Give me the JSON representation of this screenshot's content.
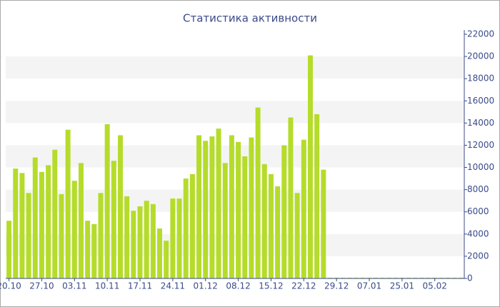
{
  "chart_data": {
    "type": "bar",
    "title": "Статистика активности",
    "categories": [
      "20.10",
      null,
      null,
      null,
      null,
      "27.10",
      null,
      null,
      null,
      null,
      "03.11",
      null,
      null,
      null,
      null,
      "10.11",
      null,
      null,
      null,
      null,
      "17.11",
      null,
      null,
      null,
      null,
      "24.11",
      null,
      null,
      null,
      null,
      "01.12",
      null,
      null,
      null,
      null,
      "08.12",
      null,
      null,
      null,
      null,
      "15.12",
      null,
      null,
      null,
      null,
      "22.12",
      null,
      null,
      null,
      null,
      "29.12",
      null,
      null,
      null,
      null,
      "07.01",
      null,
      null,
      null,
      null,
      "25.01",
      null,
      null,
      null,
      null,
      "05.02",
      null,
      null,
      null,
      null
    ],
    "values": [
      5200,
      9900,
      9500,
      7700,
      10900,
      9600,
      10200,
      11600,
      7600,
      13400,
      8800,
      10400,
      5200,
      4900,
      7700,
      13900,
      10600,
      12900,
      7400,
      6100,
      6500,
      7000,
      6700,
      4500,
      3400,
      7200,
      7200,
      9000,
      9400,
      12900,
      12400,
      12800,
      13500,
      10400,
      12900,
      12300,
      11000,
      12700,
      15400,
      10300,
      9400,
      8300,
      12000,
      14500,
      7700,
      12500,
      20100,
      14800,
      9800,
      0,
      0,
      0,
      0,
      0,
      0,
      0,
      0,
      0,
      0,
      0,
      0,
      0,
      0,
      0,
      0,
      0,
      0,
      0,
      0,
      0
    ],
    "color": "#b5dc2a",
    "ylim": [
      0,
      22000
    ],
    "yticks": [
      0,
      2000,
      4000,
      6000,
      8000,
      10000,
      12000,
      14000,
      16000,
      18000,
      20000,
      22000
    ],
    "grid": true
  }
}
